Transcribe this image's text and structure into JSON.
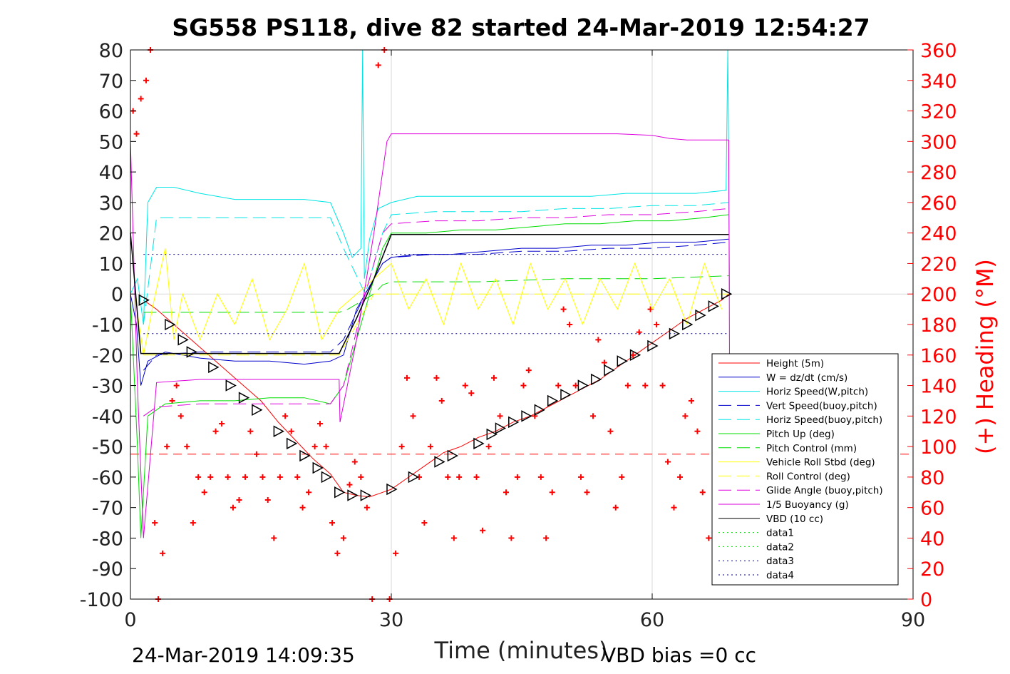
{
  "chart_data": {
    "type": "line",
    "title": "SG558 PS118, dive 82 started 24-Mar-2019 12:54:27",
    "xlabel": "Time (minutes)",
    "ylabel_right": "(+) Heading (°M)",
    "xlim": [
      0,
      90
    ],
    "ylim": [
      -100,
      80
    ],
    "ylim_right": [
      0,
      360
    ],
    "x_ticks": [
      "0",
      "30",
      "60",
      "90"
    ],
    "y_ticks": [
      "80",
      "70",
      "60",
      "50",
      "40",
      "30",
      "20",
      "10",
      "0",
      "-10",
      "-20",
      "-30",
      "-40",
      "-50",
      "-60",
      "-70",
      "-80",
      "-90",
      "-100"
    ],
    "y_right_ticks": [
      "360",
      "340",
      "320",
      "300",
      "280",
      "260",
      "240",
      "220",
      "200",
      "180",
      "160",
      "140",
      "120",
      "100",
      "80",
      "60",
      "40",
      "20",
      "0"
    ],
    "grid": true,
    "legend_position": "bottom-right",
    "footer_left": "24-Mar-2019 14:09:35",
    "footer_right": "VBD bias =0 cc",
    "colors": {
      "red": "#ff0000",
      "blue": "#0000cc",
      "cyan": "#00e5e5",
      "green": "#00dd00",
      "yellow": "#ffff00",
      "magenta": "#dd00dd",
      "black": "#000000",
      "navy": "#000080"
    },
    "series": [
      {
        "name": "Height (5m)",
        "color": "#ff0000",
        "style": "solid",
        "x": [
          1.5,
          3,
          5,
          7,
          9,
          11,
          13,
          15,
          17,
          19,
          21,
          23,
          24.5,
          26,
          27.5,
          29,
          30,
          32,
          34,
          36,
          38,
          40,
          42,
          44,
          46,
          48,
          50,
          52,
          54,
          56,
          58,
          60,
          62,
          64,
          66,
          68,
          68.8
        ],
        "y": [
          -2,
          -5,
          -10,
          -15,
          -20,
          -25,
          -30,
          -35,
          -42,
          -48,
          -54,
          -59,
          -65,
          -66,
          -66.5,
          -65,
          -64,
          -60,
          -56,
          -52,
          -50,
          -47,
          -45,
          -42,
          -40,
          -37,
          -34,
          -31,
          -28,
          -24,
          -20,
          -16,
          -12,
          -8,
          -5,
          -2,
          0
        ]
      },
      {
        "name": "W = dz/dt (cm/s)",
        "color": "#0000cc",
        "style": "solid",
        "x": [
          0,
          0.7,
          1.2,
          2,
          4,
          8,
          12,
          16,
          20,
          23,
          24.5,
          26,
          27,
          28,
          29,
          30,
          33,
          37,
          41,
          45,
          49,
          53,
          57,
          61,
          65,
          68.8
        ],
        "y": [
          0,
          -10,
          -30,
          -22,
          -19,
          -21,
          -22,
          -22,
          -23,
          -22,
          -20,
          -5,
          0,
          5,
          10,
          12,
          13,
          13,
          14,
          15,
          15,
          16,
          16,
          17,
          17,
          18
        ]
      },
      {
        "name": "Horiz Speed(W,pitch)",
        "color": "#00e5e5",
        "style": "solid",
        "x": [
          0,
          0.8,
          1.5,
          2,
          3,
          5,
          8,
          12,
          16,
          20,
          23,
          24.5,
          25.5,
          26.5,
          26.7,
          26.9,
          27.5,
          28.5,
          30,
          33,
          37,
          41,
          45,
          49,
          53,
          57,
          61,
          65,
          68.5,
          68.7,
          68.9
        ],
        "y": [
          0,
          5,
          -10,
          30,
          35,
          35,
          33,
          31,
          31,
          31,
          30,
          20,
          12,
          15,
          80,
          5,
          18,
          28,
          30,
          32,
          32,
          32,
          32,
          32,
          32,
          33,
          33,
          33,
          34,
          80,
          0
        ]
      },
      {
        "name": "Vert Speed(buoy,pitch)",
        "color": "#0000cc",
        "style": "dashed",
        "x": [
          1.5,
          3,
          8,
          13,
          18,
          23,
          24.5,
          27,
          29,
          30,
          35,
          40,
          45,
          50,
          55,
          60,
          65,
          68.8
        ],
        "y": [
          -25,
          -20,
          -19,
          -19,
          -19,
          -19,
          -15,
          0,
          10,
          12,
          13,
          13,
          14,
          14,
          15,
          15,
          16,
          17
        ]
      },
      {
        "name": "Horiz Speed(buoy,pitch)",
        "color": "#00e5e5",
        "style": "dashed",
        "x": [
          1.5,
          3,
          8,
          13,
          18,
          23,
          24.5,
          27,
          29,
          30,
          35,
          40,
          45,
          50,
          55,
          60,
          65,
          68.8
        ],
        "y": [
          -10,
          25,
          25,
          25,
          25,
          25,
          15,
          0,
          20,
          26,
          27,
          27,
          27,
          28,
          28,
          29,
          29,
          30
        ]
      },
      {
        "name": "Pitch Up (deg)",
        "color": "#00dd00",
        "style": "solid",
        "x": [
          0,
          0.8,
          1.2,
          2,
          4,
          8,
          12,
          16,
          20,
          23,
          24.5,
          27,
          29,
          30,
          34,
          38,
          42,
          46,
          50,
          54,
          58,
          62,
          66,
          68.8
        ],
        "y": [
          0,
          -50,
          -80,
          -40,
          -36,
          -35,
          -35,
          -34,
          -34,
          -36,
          -30,
          -5,
          15,
          20,
          20,
          21,
          21,
          22,
          23,
          23,
          24,
          24,
          25,
          26
        ]
      },
      {
        "name": "Pitch Control (mm)",
        "color": "#00dd00",
        "style": "dashed",
        "x": [
          1.5,
          24,
          25,
          28,
          29,
          30,
          40,
          50,
          60,
          68.8
        ],
        "y": [
          -6,
          -6,
          -5,
          0,
          3,
          4,
          4,
          5,
          5,
          6
        ]
      },
      {
        "name": "Vehicle Roll Stbd (deg)",
        "color": "#ffff00",
        "style": "solid",
        "x": [
          0.5,
          1.5,
          2.5,
          4,
          5,
          6,
          8,
          10,
          12,
          14,
          16,
          18,
          20,
          22,
          24,
          26,
          28,
          30,
          32,
          34,
          36,
          38,
          40,
          42,
          44,
          46,
          48,
          50,
          52,
          54,
          56,
          58,
          60,
          62,
          64,
          66,
          68
        ],
        "y": [
          0,
          -20,
          -5,
          15,
          -15,
          0,
          -15,
          0,
          -10,
          5,
          -15,
          -5,
          10,
          -15,
          -5,
          0,
          5,
          10,
          -5,
          5,
          -10,
          10,
          -5,
          5,
          -10,
          10,
          -5,
          5,
          -10,
          5,
          -5,
          10,
          -5,
          5,
          -10,
          10,
          -5
        ]
      },
      {
        "name": "Roll Control (deg)",
        "color": "#ffff00",
        "style": "dashed",
        "x": [
          1.5,
          24,
          26,
          28,
          30,
          68.8
        ],
        "y": [
          -20,
          -20,
          -10,
          0,
          0,
          0
        ]
      },
      {
        "name": "Glide Angle (buoy,pitch)",
        "color": "#dd00dd",
        "style": "dashed",
        "x": [
          1.5,
          3,
          8,
          13,
          18,
          23,
          24.5,
          27,
          29,
          30,
          35,
          40,
          45,
          50,
          55,
          60,
          65,
          68.8
        ],
        "y": [
          -40,
          -37,
          -36,
          -36,
          -36,
          -36,
          -30,
          0,
          20,
          23,
          24,
          24,
          25,
          25,
          26,
          26,
          27,
          28
        ]
      },
      {
        "name": "1/5 Buoyancy (g)",
        "color": "#dd00dd",
        "style": "solid",
        "x": [
          0,
          0.8,
          1.5,
          3,
          8,
          13,
          18,
          23,
          24,
          24.1,
          26,
          28,
          29.5,
          30,
          40,
          50,
          56,
          60,
          62,
          64,
          68.8,
          68.9
        ],
        "y": [
          50,
          -30,
          -80,
          -29,
          -28,
          -28,
          -28,
          -28,
          -28,
          -42,
          -15,
          20,
          50,
          52.5,
          52.5,
          52.5,
          52.5,
          52,
          51,
          50.5,
          50.5,
          -30
        ]
      },
      {
        "name": "VBD (10 cc)",
        "color": "#000000",
        "style": "solid",
        "x": [
          0,
          1.2,
          24,
          26,
          28,
          30,
          68.8
        ],
        "y": [
          20,
          -19.5,
          -19.5,
          -8,
          5,
          19.5,
          19.5
        ]
      },
      {
        "name": "data1",
        "color": "#00dd00",
        "style": "dotted",
        "x": [],
        "y": []
      },
      {
        "name": "data2",
        "color": "#00dd00",
        "style": "dotted",
        "x": [],
        "y": []
      },
      {
        "name": "data3",
        "color": "#000080",
        "style": "dotted",
        "x": [
          1.5,
          68.8
        ],
        "y": [
          13,
          13
        ]
      },
      {
        "name": "data4",
        "color": "#000080",
        "style": "dotted",
        "x": [
          1.5,
          68.8
        ],
        "y": [
          -13,
          -13
        ]
      }
    ],
    "reference_line_y": -52.5,
    "vbd_markers": {
      "x": [
        1.5,
        4.5,
        6,
        7,
        9.5,
        11.5,
        13,
        14.5,
        17,
        18.5,
        20,
        21.5,
        22.5,
        24,
        25.5,
        27,
        30,
        32.5,
        35.5,
        37,
        40,
        41.5,
        42.5,
        44,
        45.5,
        47,
        48.5,
        50,
        52,
        53.5,
        55,
        56.5,
        58,
        60,
        62.5,
        64,
        65.5,
        67,
        68.5
      ],
      "y": [
        -2,
        -10,
        -15,
        -19,
        -24,
        -30,
        -34,
        -38,
        -45,
        -49,
        -53,
        -57,
        -60,
        -65,
        -66,
        -66,
        -64,
        -60,
        -55,
        -53,
        -49,
        -46,
        -44,
        -42,
        -40,
        -38,
        -35,
        -33,
        -30,
        -28,
        -25,
        -22,
        -20,
        -17,
        -13,
        -10,
        -7,
        -4,
        0
      ]
    },
    "heading": {
      "name": "(+) Heading (°M)",
      "x": [
        0.3,
        0.7,
        1.2,
        1.8,
        2.3,
        2.8,
        3.2,
        3.7,
        4.2,
        4.8,
        5.3,
        5.8,
        6.5,
        7.2,
        7.8,
        8.5,
        9.2,
        9.8,
        10.5,
        11.2,
        11.8,
        12.5,
        13.2,
        13.8,
        14.5,
        15.2,
        15.8,
        16.5,
        17.2,
        17.8,
        18.5,
        19.2,
        19.8,
        20.5,
        21.2,
        21.8,
        22.5,
        23.2,
        23.8,
        24.5,
        25.2,
        25.8,
        26.5,
        27.2,
        27.8,
        28.5,
        29.2,
        29.8,
        30.5,
        31.2,
        31.8,
        32.5,
        33.2,
        33.8,
        34.5,
        35.2,
        35.8,
        36.5,
        37.2,
        37.8,
        38.5,
        39.2,
        39.8,
        40.5,
        41.2,
        41.8,
        42.5,
        43.2,
        43.8,
        44.5,
        45.2,
        45.8,
        46.5,
        47.2,
        47.8,
        48.5,
        49.2,
        49.8,
        50.5,
        51.2,
        51.8,
        52.5,
        53.2,
        53.8,
        54.5,
        55.2,
        55.8,
        56.5,
        57.2,
        57.8,
        58.5,
        59.2,
        59.8,
        60.5,
        61.2,
        61.8,
        62.5,
        63.2,
        63.8,
        64.5,
        65.2,
        65.8,
        66.5,
        67.2,
        67.8,
        68.5
      ],
      "y": [
        320,
        305,
        328,
        340,
        360,
        50,
        0,
        30,
        100,
        130,
        140,
        120,
        100,
        50,
        80,
        70,
        80,
        110,
        115,
        80,
        60,
        65,
        80,
        110,
        95,
        80,
        65,
        40,
        80,
        120,
        110,
        80,
        60,
        70,
        100,
        115,
        100,
        50,
        30,
        40,
        75,
        90,
        80,
        60,
        0,
        350,
        360,
        0,
        30,
        100,
        145,
        120,
        80,
        50,
        100,
        145,
        130,
        80,
        40,
        80,
        140,
        135,
        80,
        45,
        100,
        145,
        120,
        70,
        40,
        80,
        140,
        150,
        120,
        80,
        40,
        70,
        140,
        190,
        180,
        140,
        80,
        70,
        120,
        170,
        155,
        110,
        60,
        80,
        140,
        160,
        175,
        140,
        190,
        180,
        140,
        90,
        60,
        80,
        120,
        130,
        110,
        70,
        40,
        50,
        80,
        100
      ]
    }
  }
}
